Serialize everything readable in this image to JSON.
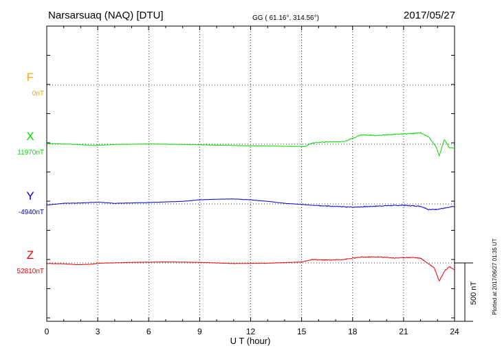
{
  "header": {
    "station": "Narsarsuaq (NAQ)  [DTU]",
    "coords": "GG ( 61.16°, 314.56°)",
    "date": "2017/05/27"
  },
  "footer": {
    "plotted": "Plotted at 2017/06/27 01:35 UT"
  },
  "scale_bar": {
    "label": "500 nT",
    "nT": 500
  },
  "chart_data": {
    "type": "line",
    "title": "Narsarsuaq (NAQ)  [DTU]",
    "xlabel": "U T (hour)",
    "xlim": [
      0,
      24
    ],
    "xticks": [
      0,
      3,
      6,
      9,
      12,
      15,
      18,
      21,
      24
    ],
    "grid": true,
    "series": [
      {
        "name": "F",
        "baseline_label": "0nT",
        "color": "#ffa500",
        "x": [],
        "y": []
      },
      {
        "name": "X",
        "baseline_label": "11970nT",
        "color": "#00dd00",
        "x": [
          0,
          1,
          2,
          2.8,
          4,
          6,
          8,
          10,
          12,
          14,
          15.2,
          15.6,
          16.5,
          17.5,
          18.5,
          19.5,
          20.5,
          21.5,
          22,
          22.5,
          22.9,
          23.1,
          23.4,
          23.7,
          24
        ],
        "y": [
          11975,
          11972,
          11966,
          11958,
          11968,
          11972,
          11968,
          11962,
          11956,
          11952,
          11950,
          11980,
          11990,
          11992,
          12050,
          12045,
          12055,
          12060,
          12068,
          12030,
          11950,
          11870,
          12010,
          11940,
          11935
        ]
      },
      {
        "name": "Y",
        "baseline_label": "-4940nT",
        "color": "#0000dd",
        "x": [
          0,
          1,
          2,
          3,
          4,
          6,
          8,
          9,
          10,
          11,
          12,
          13,
          14,
          15,
          16,
          17,
          18,
          19,
          20,
          21,
          22,
          22.5,
          23,
          23.5,
          24
        ],
        "y": [
          -4950,
          -4935,
          -4932,
          -4925,
          -4935,
          -4928,
          -4918,
          -4905,
          -4900,
          -4898,
          -4905,
          -4918,
          -4935,
          -4945,
          -4955,
          -4962,
          -4968,
          -4962,
          -4955,
          -4952,
          -4960,
          -4990,
          -4985,
          -4975,
          -4960
        ]
      },
      {
        "name": "Z",
        "baseline_label": "52810nT",
        "color": "#ee0000",
        "x": [
          0,
          1,
          1.8,
          2.5,
          3.2,
          5,
          7,
          9,
          11,
          13,
          15,
          15.6,
          16.5,
          17.5,
          18.5,
          19.5,
          20.5,
          21.5,
          22,
          22.4,
          22.8,
          23.1,
          23.4,
          23.7,
          24
        ],
        "y": [
          52805,
          52803,
          52795,
          52798,
          52808,
          52815,
          52818,
          52815,
          52805,
          52808,
          52818,
          52838,
          52835,
          52840,
          52860,
          52862,
          52852,
          52858,
          52850,
          52810,
          52770,
          52655,
          52740,
          52780,
          52750
        ]
      }
    ]
  }
}
